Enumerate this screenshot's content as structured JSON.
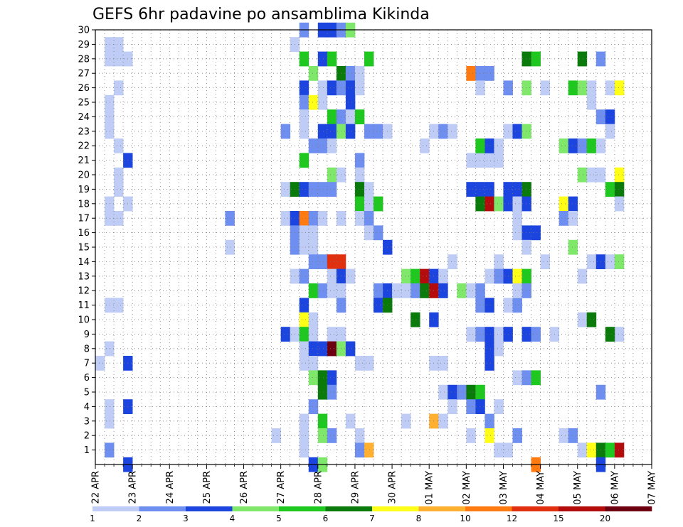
{
  "chart_data": {
    "type": "heatmap",
    "title": "GEFS 6hr padavine po ansamblima Kikinda",
    "y_ticks": [
      "1",
      "2",
      "3",
      "4",
      "5",
      "6",
      "7",
      "8",
      "9",
      "10",
      "11",
      "12",
      "13",
      "14",
      "15",
      "16",
      "17",
      "18",
      "19",
      "20",
      "21",
      "22",
      "23",
      "24",
      "25",
      "26",
      "27",
      "28",
      "29",
      "30"
    ],
    "x_ticks": [
      "22 APR",
      "23 APR",
      "24 APR",
      "25 APR",
      "26 APR",
      "27 APR",
      "28 APR",
      "29 APR",
      "30 APR",
      "01 MAY",
      "02 MAY",
      "03 MAY",
      "04 MAY",
      "05 MAY",
      "06 MAY",
      "07 MAY"
    ],
    "y_range": [
      0,
      30
    ],
    "x_range_steps_6h": [
      0,
      60
    ],
    "grid": "dotted",
    "colorbar": {
      "labels": [
        "1",
        "2",
        "3",
        "4",
        "5",
        "6",
        "7",
        "8",
        "10",
        "12",
        "15",
        "20"
      ],
      "colors": [
        "#bfcdf6",
        "#6f8ff0",
        "#1c45e0",
        "#7fe86a",
        "#1ec81e",
        "#0a7a0a",
        "#ffff18",
        "#ffb030",
        "#ff7a10",
        "#e03010",
        "#b40c0c",
        "#6c0010"
      ]
    },
    "cells": [
      [
        1,
        29,
        1
      ],
      [
        2,
        29,
        1
      ],
      [
        1,
        28,
        1
      ],
      [
        2,
        28,
        1
      ],
      [
        3,
        28,
        1
      ],
      [
        2,
        26,
        1
      ],
      [
        1,
        25,
        1
      ],
      [
        1,
        24,
        1
      ],
      [
        1,
        23,
        1
      ],
      [
        2,
        22,
        1
      ],
      [
        3,
        21,
        3
      ],
      [
        2,
        20,
        1
      ],
      [
        2,
        19,
        1
      ],
      [
        1,
        18,
        1
      ],
      [
        3,
        18,
        1
      ],
      [
        1,
        17,
        1
      ],
      [
        2,
        17,
        1
      ],
      [
        1,
        11,
        1
      ],
      [
        2,
        11,
        1
      ],
      [
        1,
        8,
        1
      ],
      [
        0,
        7,
        1
      ],
      [
        3,
        7,
        3
      ],
      [
        1,
        4,
        1
      ],
      [
        3,
        4,
        3
      ],
      [
        1,
        3,
        1
      ],
      [
        1,
        1,
        2
      ],
      [
        3,
        0,
        3
      ],
      [
        14,
        17,
        2
      ],
      [
        14,
        15,
        1
      ],
      [
        19,
        2,
        1
      ],
      [
        22,
        30,
        2
      ],
      [
        24,
        30,
        3
      ],
      [
        25,
        30,
        3
      ],
      [
        26,
        30,
        2
      ],
      [
        27,
        30,
        4
      ],
      [
        21,
        29,
        1
      ],
      [
        22,
        28,
        5
      ],
      [
        24,
        28,
        3
      ],
      [
        25,
        28,
        5
      ],
      [
        29,
        28,
        5
      ],
      [
        23,
        27,
        4
      ],
      [
        26,
        27,
        6
      ],
      [
        27,
        27,
        2
      ],
      [
        28,
        27,
        1
      ],
      [
        22,
        26,
        3
      ],
      [
        24,
        26,
        1
      ],
      [
        25,
        26,
        3
      ],
      [
        26,
        26,
        2
      ],
      [
        27,
        26,
        3
      ],
      [
        28,
        26,
        1
      ],
      [
        22,
        25,
        2
      ],
      [
        23,
        25,
        7
      ],
      [
        24,
        25,
        1
      ],
      [
        27,
        25,
        3
      ],
      [
        22,
        24,
        1
      ],
      [
        25,
        24,
        5
      ],
      [
        26,
        24,
        2
      ],
      [
        27,
        24,
        1
      ],
      [
        28,
        24,
        5
      ],
      [
        20,
        23,
        2
      ],
      [
        22,
        23,
        1
      ],
      [
        24,
        23,
        3
      ],
      [
        25,
        23,
        3
      ],
      [
        26,
        23,
        4
      ],
      [
        27,
        23,
        3
      ],
      [
        29,
        23,
        2
      ],
      [
        30,
        23,
        2
      ],
      [
        31,
        23,
        1
      ],
      [
        23,
        22,
        2
      ],
      [
        24,
        22,
        2
      ],
      [
        25,
        22,
        1
      ],
      [
        22,
        21,
        5
      ],
      [
        28,
        21,
        2
      ],
      [
        25,
        20,
        4
      ],
      [
        26,
        20,
        1
      ],
      [
        28,
        20,
        1
      ],
      [
        20,
        19,
        1
      ],
      [
        21,
        19,
        6
      ],
      [
        22,
        19,
        3
      ],
      [
        23,
        19,
        2
      ],
      [
        24,
        19,
        2
      ],
      [
        25,
        19,
        2
      ],
      [
        28,
        19,
        6
      ],
      [
        29,
        19,
        1
      ],
      [
        28,
        18,
        5
      ],
      [
        29,
        18,
        1
      ],
      [
        30,
        18,
        5
      ],
      [
        20,
        17,
        1
      ],
      [
        21,
        17,
        3
      ],
      [
        22,
        17,
        9
      ],
      [
        23,
        17,
        2
      ],
      [
        24,
        17,
        1
      ],
      [
        26,
        17,
        1
      ],
      [
        28,
        17,
        1
      ],
      [
        29,
        17,
        2
      ],
      [
        21,
        16,
        2
      ],
      [
        22,
        16,
        1
      ],
      [
        23,
        16,
        1
      ],
      [
        29,
        16,
        1
      ],
      [
        30,
        16,
        2
      ],
      [
        21,
        15,
        2
      ],
      [
        22,
        15,
        1
      ],
      [
        23,
        15,
        1
      ],
      [
        31,
        15,
        3
      ],
      [
        23,
        14,
        2
      ],
      [
        24,
        14,
        2
      ],
      [
        25,
        14,
        10
      ],
      [
        26,
        14,
        10
      ],
      [
        21,
        13,
        1
      ],
      [
        22,
        13,
        2
      ],
      [
        25,
        13,
        1
      ],
      [
        26,
        13,
        3
      ],
      [
        27,
        13,
        1
      ],
      [
        23,
        12,
        5
      ],
      [
        24,
        12,
        2
      ],
      [
        25,
        12,
        1
      ],
      [
        26,
        12,
        1
      ],
      [
        30,
        12,
        2
      ],
      [
        31,
        12,
        3
      ],
      [
        22,
        11,
        3
      ],
      [
        26,
        11,
        2
      ],
      [
        30,
        11,
        3
      ],
      [
        31,
        11,
        6
      ],
      [
        22,
        10,
        7
      ],
      [
        23,
        10,
        1
      ],
      [
        20,
        9,
        3
      ],
      [
        21,
        9,
        1
      ],
      [
        22,
        9,
        5
      ],
      [
        23,
        9,
        1
      ],
      [
        25,
        9,
        1
      ],
      [
        26,
        9,
        1
      ],
      [
        22,
        8,
        1
      ],
      [
        23,
        8,
        3
      ],
      [
        24,
        8,
        3
      ],
      [
        25,
        8,
        12
      ],
      [
        26,
        8,
        4
      ],
      [
        27,
        8,
        3
      ],
      [
        22,
        7,
        1
      ],
      [
        23,
        7,
        1
      ],
      [
        28,
        7,
        1
      ],
      [
        29,
        7,
        1
      ],
      [
        23,
        6,
        4
      ],
      [
        24,
        6,
        6
      ],
      [
        25,
        6,
        3
      ],
      [
        24,
        5,
        6
      ],
      [
        25,
        5,
        2
      ],
      [
        23,
        4,
        2
      ],
      [
        22,
        3,
        1
      ],
      [
        24,
        3,
        5
      ],
      [
        27,
        3,
        1
      ],
      [
        22,
        2,
        1
      ],
      [
        24,
        2,
        4
      ],
      [
        25,
        2,
        2
      ],
      [
        28,
        2,
        1
      ],
      [
        22,
        1,
        1
      ],
      [
        28,
        1,
        2
      ],
      [
        29,
        1,
        8
      ],
      [
        23,
        0,
        3
      ],
      [
        24,
        0,
        4
      ],
      [
        33,
        13,
        4
      ],
      [
        34,
        13,
        5
      ],
      [
        35,
        13,
        11
      ],
      [
        36,
        13,
        3
      ],
      [
        37,
        13,
        1
      ],
      [
        32,
        12,
        1
      ],
      [
        33,
        12,
        1
      ],
      [
        34,
        12,
        2
      ],
      [
        35,
        12,
        6
      ],
      [
        36,
        12,
        11
      ],
      [
        37,
        12,
        3
      ],
      [
        39,
        12,
        4
      ],
      [
        40,
        12,
        1
      ],
      [
        34,
        10,
        6
      ],
      [
        36,
        10,
        3
      ],
      [
        36,
        7,
        1
      ],
      [
        37,
        7,
        1
      ],
      [
        37,
        5,
        1
      ],
      [
        36,
        3,
        8
      ],
      [
        37,
        3,
        1
      ],
      [
        33,
        3,
        1
      ],
      [
        36,
        23,
        1
      ],
      [
        37,
        23,
        2
      ],
      [
        38,
        23,
        1
      ],
      [
        35,
        22,
        1
      ],
      [
        38,
        14,
        1
      ],
      [
        40,
        21,
        1
      ],
      [
        41,
        21,
        1
      ],
      [
        42,
        21,
        1
      ],
      [
        43,
        21,
        1
      ],
      [
        40,
        19,
        3
      ],
      [
        41,
        19,
        3
      ],
      [
        42,
        19,
        3
      ],
      [
        44,
        19,
        3
      ],
      [
        45,
        19,
        3
      ],
      [
        46,
        19,
        6
      ],
      [
        41,
        18,
        6
      ],
      [
        42,
        18,
        11
      ],
      [
        43,
        18,
        4
      ],
      [
        44,
        18,
        3
      ],
      [
        45,
        18,
        1
      ],
      [
        46,
        18,
        3
      ],
      [
        40,
        27,
        9
      ],
      [
        41,
        27,
        2
      ],
      [
        42,
        27,
        2
      ],
      [
        41,
        26,
        1
      ],
      [
        41,
        22,
        5
      ],
      [
        42,
        22,
        3
      ],
      [
        43,
        22,
        1
      ],
      [
        44,
        23,
        1
      ],
      [
        45,
        23,
        3
      ],
      [
        46,
        23,
        4
      ],
      [
        43,
        14,
        1
      ],
      [
        42,
        13,
        1
      ],
      [
        43,
        13,
        2
      ],
      [
        44,
        13,
        3
      ],
      [
        45,
        13,
        7
      ],
      [
        46,
        13,
        5
      ],
      [
        41,
        11,
        2
      ],
      [
        42,
        11,
        3
      ],
      [
        44,
        11,
        1
      ],
      [
        45,
        11,
        2
      ],
      [
        41,
        12,
        2
      ],
      [
        45,
        12,
        1
      ],
      [
        46,
        12,
        2
      ],
      [
        40,
        9,
        1
      ],
      [
        41,
        9,
        2
      ],
      [
        42,
        9,
        3
      ],
      [
        43,
        9,
        1
      ],
      [
        44,
        9,
        3
      ],
      [
        46,
        9,
        3
      ],
      [
        47,
        9,
        2
      ],
      [
        42,
        8,
        3
      ],
      [
        43,
        8,
        1
      ],
      [
        42,
        7,
        3
      ],
      [
        45,
        6,
        1
      ],
      [
        46,
        6,
        2
      ],
      [
        47,
        6,
        5
      ],
      [
        38,
        5,
        3
      ],
      [
        39,
        5,
        2
      ],
      [
        40,
        5,
        6
      ],
      [
        41,
        5,
        5
      ],
      [
        38,
        4,
        1
      ],
      [
        40,
        4,
        2
      ],
      [
        41,
        4,
        3
      ],
      [
        43,
        4,
        1
      ],
      [
        42,
        3,
        2
      ],
      [
        40,
        2,
        1
      ],
      [
        42,
        2,
        7
      ],
      [
        45,
        2,
        2
      ],
      [
        43,
        1,
        1
      ],
      [
        44,
        1,
        1
      ],
      [
        47,
        0,
        9
      ],
      [
        45,
        17,
        1
      ],
      [
        45,
        16,
        1
      ],
      [
        46,
        16,
        3
      ],
      [
        46,
        15,
        1
      ],
      [
        44,
        26,
        2
      ],
      [
        46,
        26,
        4
      ],
      [
        48,
        26,
        1
      ],
      [
        46,
        28,
        6
      ],
      [
        47,
        28,
        5
      ],
      [
        47,
        16,
        3
      ],
      [
        48,
        14,
        1
      ],
      [
        49,
        9,
        1
      ],
      [
        52,
        28,
        6
      ],
      [
        54,
        28,
        2
      ],
      [
        51,
        26,
        5
      ],
      [
        52,
        26,
        4
      ],
      [
        53,
        26,
        1
      ],
      [
        55,
        26,
        1
      ],
      [
        56,
        26,
        7
      ],
      [
        53,
        25,
        1
      ],
      [
        54,
        24,
        2
      ],
      [
        55,
        24,
        3
      ],
      [
        55,
        23,
        1
      ],
      [
        50,
        22,
        4
      ],
      [
        51,
        22,
        3
      ],
      [
        52,
        22,
        2
      ],
      [
        53,
        22,
        5
      ],
      [
        54,
        22,
        1
      ],
      [
        52,
        20,
        4
      ],
      [
        53,
        20,
        1
      ],
      [
        54,
        20,
        1
      ],
      [
        56,
        20,
        7
      ],
      [
        55,
        19,
        5
      ],
      [
        56,
        19,
        6
      ],
      [
        50,
        18,
        7
      ],
      [
        51,
        18,
        3
      ],
      [
        56,
        18,
        1
      ],
      [
        50,
        17,
        2
      ],
      [
        51,
        17,
        1
      ],
      [
        51,
        15,
        4
      ],
      [
        53,
        14,
        1
      ],
      [
        54,
        14,
        3
      ],
      [
        55,
        14,
        1
      ],
      [
        56,
        14,
        4
      ],
      [
        52,
        13,
        1
      ],
      [
        52,
        10,
        1
      ],
      [
        53,
        10,
        6
      ],
      [
        56,
        9,
        1
      ],
      [
        55,
        9,
        6
      ],
      [
        54,
        5,
        2
      ],
      [
        50,
        2,
        1
      ],
      [
        51,
        2,
        2
      ],
      [
        52,
        1,
        1
      ],
      [
        53,
        1,
        7
      ],
      [
        54,
        1,
        6
      ],
      [
        55,
        1,
        5
      ],
      [
        56,
        1,
        11
      ],
      [
        54,
        0,
        3
      ]
    ]
  }
}
